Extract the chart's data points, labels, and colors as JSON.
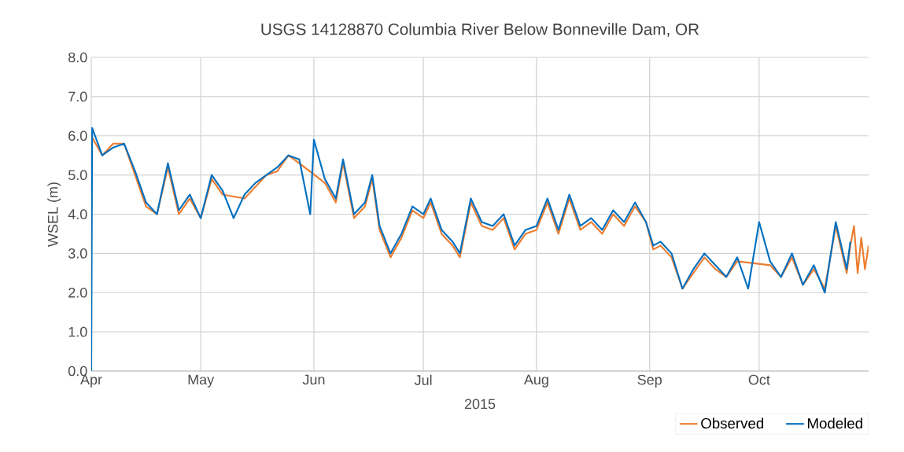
{
  "chart_data": {
    "type": "line",
    "title": "USGS 14128870 Columbia River Below Bonneville Dam, OR",
    "xlabel": "2015",
    "ylabel": "WSEL (m)",
    "xlim": [
      "2015-04-01",
      "2015-10-31"
    ],
    "xticks": [
      {
        "value": "2015-04-01",
        "label": "Apr"
      },
      {
        "value": "2015-05-01",
        "label": "May"
      },
      {
        "value": "2015-06-01",
        "label": "Jun"
      },
      {
        "value": "2015-07-01",
        "label": "Jul"
      },
      {
        "value": "2015-08-01",
        "label": "Aug"
      },
      {
        "value": "2015-09-01",
        "label": "Sep"
      },
      {
        "value": "2015-10-01",
        "label": "Oct"
      }
    ],
    "ylim": [
      0,
      8
    ],
    "yticks": [
      {
        "value": 0,
        "label": "0.0"
      },
      {
        "value": 1,
        "label": "1.0"
      },
      {
        "value": 2,
        "label": "2.0"
      },
      {
        "value": 3,
        "label": "3.0"
      },
      {
        "value": 4,
        "label": "4.0"
      },
      {
        "value": 5,
        "label": "5.0"
      },
      {
        "value": 6,
        "label": "6.0"
      },
      {
        "value": 7,
        "label": "7.0"
      },
      {
        "value": 8,
        "label": "8.0"
      }
    ],
    "grid": true,
    "legend": "bottom right",
    "marker": "none",
    "line_style": "solid",
    "series": [
      {
        "name": "Observed",
        "color": "#ed7d31",
        "x": [
          "2015-04-01",
          "2015-04-04",
          "2015-04-07",
          "2015-04-10",
          "2015-04-13",
          "2015-04-16",
          "2015-04-19",
          "2015-04-22",
          "2015-04-25",
          "2015-04-28",
          "2015-05-01",
          "2015-05-04",
          "2015-05-07",
          "2015-05-10",
          "2015-05-13",
          "2015-05-16",
          "2015-05-19",
          "2015-05-22",
          "2015-05-25",
          "2015-05-28",
          "2015-05-31",
          "2015-06-01",
          "2015-06-04",
          "2015-06-07",
          "2015-06-09",
          "2015-06-12",
          "2015-06-15",
          "2015-06-17",
          "2015-06-19",
          "2015-06-22",
          "2015-06-25",
          "2015-06-28",
          "2015-07-01",
          "2015-07-03",
          "2015-07-06",
          "2015-07-09",
          "2015-07-11",
          "2015-07-14",
          "2015-07-17",
          "2015-07-20",
          "2015-07-23",
          "2015-07-26",
          "2015-07-29",
          "2015-08-01",
          "2015-08-04",
          "2015-08-07",
          "2015-08-10",
          "2015-08-13",
          "2015-08-16",
          "2015-08-19",
          "2015-08-22",
          "2015-08-25",
          "2015-08-28",
          "2015-08-31",
          "2015-09-02",
          "2015-09-04",
          "2015-09-07",
          "2015-09-10",
          "2015-09-13",
          "2015-09-16",
          "2015-09-19",
          "2015-09-22",
          "2015-09-25",
          "2015-09-28",
          "2015-10-01",
          "2015-10-04",
          "2015-10-07",
          "2015-10-10",
          "2015-10-13",
          "2015-10-16",
          "2015-10-19",
          "2015-10-22",
          "2015-10-25",
          "2015-10-26",
          "2015-10-27",
          "2015-10-28",
          "2015-10-29",
          "2015-10-30",
          "2015-10-31"
        ],
        "values": [
          6.0,
          5.5,
          5.8,
          5.8,
          5.0,
          4.2,
          4.0,
          5.2,
          4.0,
          4.4,
          3.9,
          4.9,
          4.5,
          null,
          4.4,
          4.7,
          5.0,
          5.1,
          5.5,
          5.3,
          null,
          null,
          4.8,
          4.3,
          5.3,
          3.9,
          4.2,
          4.9,
          3.6,
          2.9,
          3.4,
          4.1,
          3.9,
          4.3,
          3.5,
          3.2,
          2.9,
          4.3,
          3.7,
          3.6,
          3.9,
          3.1,
          3.5,
          3.6,
          4.3,
          3.5,
          4.4,
          3.6,
          3.8,
          3.5,
          4.0,
          3.7,
          4.2,
          3.8,
          3.1,
          3.2,
          2.9,
          2.1,
          2.5,
          2.9,
          2.6,
          2.4,
          2.8,
          null,
          null,
          2.7,
          2.4,
          2.9,
          2.2,
          2.6,
          2.1,
          3.7,
          2.5,
          3.2,
          3.7,
          2.5,
          3.4,
          2.6,
          3.2
        ]
      },
      {
        "name": "Modeled",
        "color": "#0070c0",
        "x": [
          "2015-04-01T00:00",
          "2015-04-01T06:00",
          "2015-04-04",
          "2015-04-07",
          "2015-04-10",
          "2015-04-13",
          "2015-04-16",
          "2015-04-19",
          "2015-04-22",
          "2015-04-25",
          "2015-04-28",
          "2015-05-01",
          "2015-05-04",
          "2015-05-07",
          "2015-05-10",
          "2015-05-13",
          "2015-05-16",
          "2015-05-19",
          "2015-05-22",
          "2015-05-25",
          "2015-05-28",
          "2015-05-31",
          "2015-06-01",
          "2015-06-04",
          "2015-06-07",
          "2015-06-09",
          "2015-06-12",
          "2015-06-15",
          "2015-06-17",
          "2015-06-19",
          "2015-06-22",
          "2015-06-25",
          "2015-06-28",
          "2015-07-01",
          "2015-07-03",
          "2015-07-06",
          "2015-07-09",
          "2015-07-11",
          "2015-07-14",
          "2015-07-17",
          "2015-07-20",
          "2015-07-23",
          "2015-07-26",
          "2015-07-29",
          "2015-08-01",
          "2015-08-04",
          "2015-08-07",
          "2015-08-10",
          "2015-08-13",
          "2015-08-16",
          "2015-08-19",
          "2015-08-22",
          "2015-08-25",
          "2015-08-28",
          "2015-08-31",
          "2015-09-02",
          "2015-09-04",
          "2015-09-07",
          "2015-09-10",
          "2015-09-13",
          "2015-09-16",
          "2015-09-19",
          "2015-09-22",
          "2015-09-25",
          "2015-09-28",
          "2015-10-01",
          "2015-10-04",
          "2015-10-07",
          "2015-10-10",
          "2015-10-13",
          "2015-10-16",
          "2015-10-19",
          "2015-10-22",
          "2015-10-25",
          "2015-10-26"
        ],
        "values": [
          0.0,
          6.2,
          5.5,
          5.7,
          5.8,
          5.1,
          4.3,
          4.0,
          5.3,
          4.1,
          4.5,
          3.9,
          5.0,
          4.6,
          3.9,
          4.5,
          4.8,
          5.0,
          5.2,
          5.5,
          5.4,
          4.0,
          5.9,
          4.9,
          4.4,
          5.4,
          4.0,
          4.3,
          5.0,
          3.7,
          3.0,
          3.5,
          4.2,
          4.0,
          4.4,
          3.6,
          3.3,
          3.0,
          4.4,
          3.8,
          3.7,
          4.0,
          3.2,
          3.6,
          3.7,
          4.4,
          3.6,
          4.5,
          3.7,
          3.9,
          3.6,
          4.1,
          3.8,
          4.3,
          3.8,
          3.2,
          3.3,
          3.0,
          2.1,
          2.6,
          3.0,
          2.7,
          2.4,
          2.9,
          2.1,
          3.8,
          2.8,
          2.4,
          3.0,
          2.2,
          2.7,
          2.0,
          3.8,
          2.6,
          3.3
        ]
      }
    ]
  }
}
